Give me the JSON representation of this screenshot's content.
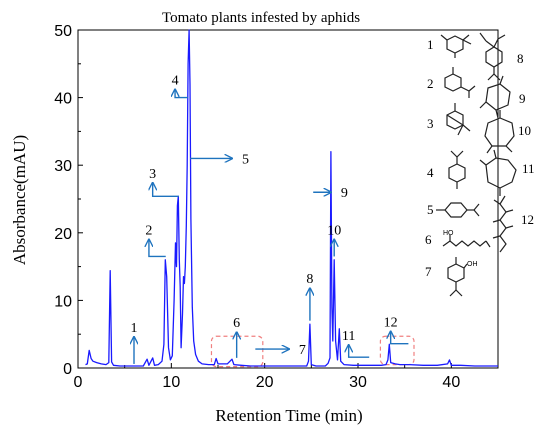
{
  "chart_data": {
    "type": "line",
    "title": "Tomato plants infested by aphids",
    "xlabel": "Retention Time (min)",
    "ylabel": "Absorbance(mAU)",
    "xlim": [
      0,
      45
    ],
    "ylim": [
      0,
      50
    ],
    "x_ticks": [
      0,
      10,
      20,
      30,
      40
    ],
    "y_ticks": [
      0,
      10,
      20,
      30,
      40,
      50
    ],
    "grid": false,
    "line_color": "#1a1aff",
    "annotation_color": "#1e73be",
    "highlight_box_color": "#f08080",
    "series": [
      {
        "points": [
          [
            0.8,
            0.5
          ],
          [
            1.0,
            0.6
          ],
          [
            1.2,
            2.6
          ],
          [
            1.4,
            1.4
          ],
          [
            1.6,
            1.0
          ],
          [
            2.0,
            0.8
          ],
          [
            2.5,
            0.6
          ],
          [
            3.0,
            0.5
          ],
          [
            3.3,
            0.8
          ],
          [
            3.45,
            14.4
          ],
          [
            3.6,
            0.9
          ],
          [
            3.8,
            0.4
          ],
          [
            4.5,
            0.3
          ],
          [
            5.5,
            0.3
          ],
          [
            6.5,
            0.3
          ],
          [
            7.0,
            0.3
          ],
          [
            7.4,
            1.3
          ],
          [
            7.6,
            0.4
          ],
          [
            8.0,
            1.5
          ],
          [
            8.2,
            0.4
          ],
          [
            8.6,
            0.5
          ],
          [
            9.0,
            1.0
          ],
          [
            9.2,
            3.5
          ],
          [
            9.35,
            16.0
          ],
          [
            9.5,
            13.5
          ],
          [
            9.7,
            3.0
          ],
          [
            9.9,
            1.2
          ],
          [
            10.1,
            1.8
          ],
          [
            10.3,
            10.0
          ],
          [
            10.45,
            18.5
          ],
          [
            10.55,
            15.0
          ],
          [
            10.65,
            24.0
          ],
          [
            10.75,
            25.4
          ],
          [
            10.85,
            16.0
          ],
          [
            10.95,
            12.0
          ],
          [
            11.05,
            3.0
          ],
          [
            11.2,
            8.0
          ],
          [
            11.3,
            13.5
          ],
          [
            11.4,
            12.5
          ],
          [
            11.5,
            15.0
          ],
          [
            11.6,
            21.0
          ],
          [
            11.7,
            30.0
          ],
          [
            11.8,
            45.0
          ],
          [
            11.9,
            50.0
          ],
          [
            12.0,
            42.0
          ],
          [
            12.1,
            22.0
          ],
          [
            12.25,
            9.0
          ],
          [
            12.4,
            4.0
          ],
          [
            12.6,
            2.0
          ],
          [
            12.9,
            1.0
          ],
          [
            13.3,
            0.6
          ],
          [
            14.0,
            0.5
          ],
          [
            14.6,
            0.5
          ],
          [
            14.8,
            1.4
          ],
          [
            15.0,
            0.6
          ],
          [
            16.0,
            0.6
          ],
          [
            16.5,
            1.3
          ],
          [
            16.7,
            0.5
          ],
          [
            17.5,
            0.4
          ],
          [
            18.5,
            0.3
          ],
          [
            19.5,
            0.3
          ],
          [
            20.5,
            0.3
          ],
          [
            22.0,
            0.3
          ],
          [
            23.5,
            0.3
          ],
          [
            24.5,
            0.3
          ],
          [
            24.7,
            1.0
          ],
          [
            24.85,
            6.5
          ],
          [
            25.0,
            0.5
          ],
          [
            25.5,
            0.3
          ],
          [
            26.5,
            0.3
          ],
          [
            26.8,
            0.7
          ],
          [
            27.0,
            1.5
          ],
          [
            27.1,
            32.0
          ],
          [
            27.2,
            9.0
          ],
          [
            27.3,
            4.0
          ],
          [
            27.45,
            16.0
          ],
          [
            27.6,
            4.0
          ],
          [
            27.8,
            1.2
          ],
          [
            28.0,
            5.8
          ],
          [
            28.15,
            1.0
          ],
          [
            28.5,
            0.5
          ],
          [
            29.5,
            0.4
          ],
          [
            30.5,
            0.4
          ],
          [
            31.5,
            0.4
          ],
          [
            32.5,
            0.4
          ],
          [
            33.0,
            0.5
          ],
          [
            33.2,
            1.2
          ],
          [
            33.35,
            3.5
          ],
          [
            33.5,
            0.8
          ],
          [
            34.0,
            0.6
          ],
          [
            34.5,
            0.5
          ],
          [
            35.5,
            0.5
          ],
          [
            37.0,
            0.4
          ],
          [
            38.5,
            0.4
          ],
          [
            39.6,
            0.6
          ],
          [
            39.8,
            1.2
          ],
          [
            40.0,
            0.4
          ],
          [
            41.0,
            0.4
          ],
          [
            42.5,
            0.3
          ],
          [
            44.0,
            0.3
          ],
          [
            45.0,
            0.3
          ]
        ]
      }
    ],
    "annotations": [
      {
        "label": "1",
        "x": 6.0,
        "y": 0.6,
        "shape": "up",
        "height": 4.0
      },
      {
        "label": "2",
        "x": 7.6,
        "y": 16.5,
        "shape": "right",
        "len": 1.8,
        "height": 2.5
      },
      {
        "label": "3",
        "x": 8.0,
        "y": 25.4,
        "shape": "right",
        "len": 2.8,
        "height": 2.0
      },
      {
        "label": "4",
        "x": 10.4,
        "y": 40.0,
        "shape": "right",
        "len": 1.4,
        "height": 1.2
      },
      {
        "label": "5",
        "x": 12.0,
        "y": 31.0,
        "shape": "right",
        "len": 4.5,
        "height": 0
      },
      {
        "label": "6",
        "x": 17.0,
        "y": 1.5,
        "shape": "up",
        "height": 3.8
      },
      {
        "label": "7",
        "x": 19.0,
        "y": 2.8,
        "shape": "right",
        "len": 3.6,
        "height": 0
      },
      {
        "label": "8",
        "x": 24.85,
        "y": 7.0,
        "shape": "up",
        "height": 4.8
      },
      {
        "label": "9",
        "x": 25.2,
        "y": 26.0,
        "shape": "right",
        "len": 1.9,
        "height": 0
      },
      {
        "label": "10",
        "x": 27.45,
        "y": 16.5,
        "shape": "up",
        "height": 2.5
      },
      {
        "label": "11",
        "x": 29.0,
        "y": 1.6,
        "shape": "right",
        "len": 2.2,
        "height": 1.8
      },
      {
        "label": "12",
        "x": 33.5,
        "y": 3.6,
        "shape": "right",
        "len": 1.9,
        "height": 1.8
      }
    ],
    "highlight_regions": [
      {
        "x0": 14.3,
        "x1": 19.8,
        "y0": 0.2,
        "y1": 4.7
      },
      {
        "x0": 32.4,
        "x1": 36.0,
        "y0": 0.5,
        "y1": 4.7
      }
    ]
  },
  "compound_numbers": [
    "1",
    "2",
    "3",
    "4",
    "5",
    "6",
    "7",
    "8",
    "9",
    "10",
    "11",
    "12"
  ]
}
